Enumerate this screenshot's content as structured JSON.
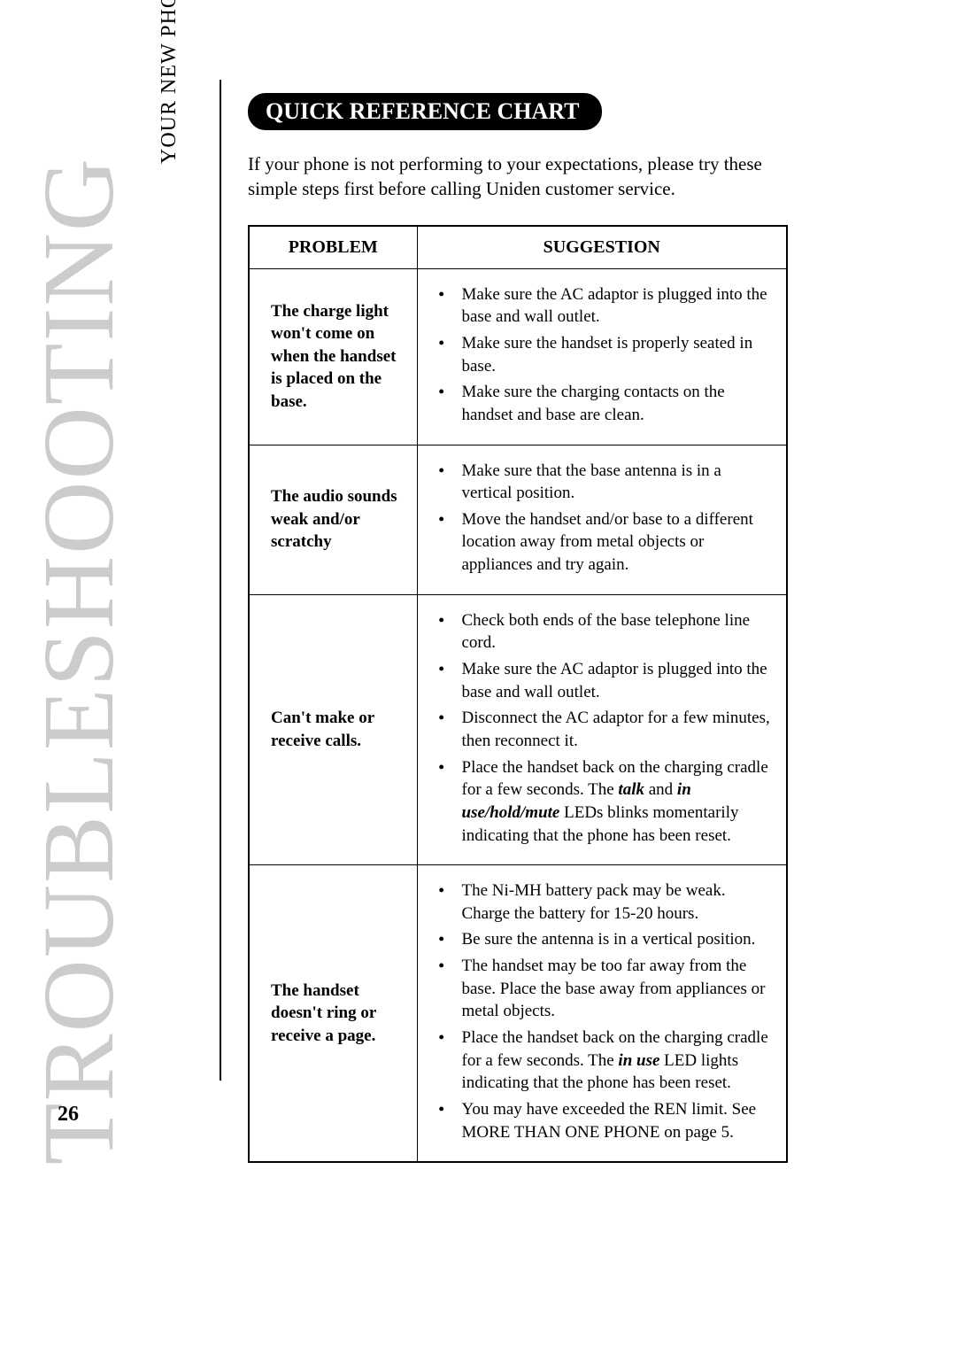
{
  "sideTitle": "TROUBLESHOOTING",
  "sideSubtitle": "YOUR NEW PHONE",
  "pageNumber": "26",
  "sectionHeading": "QUICK REFERENCE CHART",
  "introText": "If your phone is not performing to your expectations, please try these simple steps first before calling Uniden customer service.",
  "tableHeaders": {
    "problem": "PROBLEM",
    "suggestion": "SUGGESTION"
  },
  "rows": [
    {
      "problem": "The charge light won't come on when the handset is placed on the base.",
      "suggestions": [
        {
          "text": "Make sure the AC adaptor is plugged into the base and wall outlet."
        },
        {
          "text": "Make sure the handset is properly seated in base."
        },
        {
          "text": "Make sure the charging contacts on the handset and base are clean."
        }
      ]
    },
    {
      "problem": "The audio sounds weak and/or scratchy",
      "suggestions": [
        {
          "text": "Make sure that the base antenna is in a vertical position."
        },
        {
          "text": "Move the handset and/or base to a different location away from metal objects or appliances and try again."
        }
      ]
    },
    {
      "problem": "Can't make or receive calls.",
      "suggestions": [
        {
          "text": "Check both ends of the base telephone line cord."
        },
        {
          "text": "Make sure the AC adaptor is plugged into the base and wall outlet."
        },
        {
          "text": "Disconnect the AC adaptor for a few minutes, then reconnect it."
        },
        {
          "html": "Place the handset back on the charging cradle for a few seconds. The <span class=\"bold-italic\">talk</span> and <span class=\"bold-italic\">in use/hold/mute</span> LEDs blinks momentarily indicating that the phone has been reset."
        }
      ]
    },
    {
      "problem": "The handset doesn't ring or receive a page.",
      "suggestions": [
        {
          "text": "The Ni-MH battery pack may be weak. Charge the battery for 15-20 hours."
        },
        {
          "text": "Be sure the antenna is in a vertical position."
        },
        {
          "text": "The handset may be too far away from the base. Place the base away from appliances or metal objects."
        },
        {
          "html": "Place the handset back on the charging cradle for a few seconds. The <span class=\"bold-italic\">in use</span> LED lights indicating that the phone has been reset."
        },
        {
          "text": "You may have exceeded the REN limit. See MORE THAN ONE PHONE on page 5."
        }
      ]
    }
  ]
}
